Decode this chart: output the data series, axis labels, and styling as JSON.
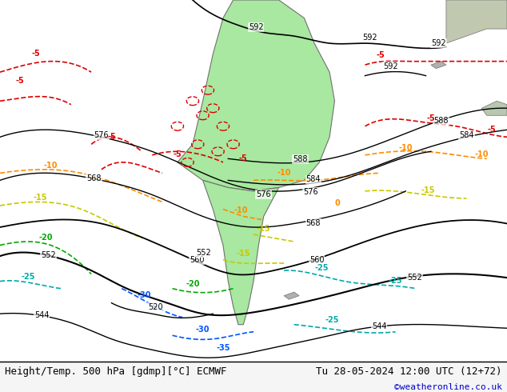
{
  "title_left": "Height/Temp. 500 hPa [gdmp][°C] ECMWF",
  "title_right": "Tu 28-05-2024 12:00 UTC (12+72)",
  "credit": "©weatheronline.co.uk",
  "bg_color": "#c8c8c8",
  "land_color": "#e8e8e8",
  "green_area_color": "#a8e8a0",
  "fig_width": 6.34,
  "fig_height": 4.9,
  "dpi": 100,
  "bottom_bar_color": "#f0f0f0",
  "bottom_bar_height": 0.08,
  "title_fontsize": 9,
  "credit_color": "#0000cc",
  "credit_fontsize": 8
}
